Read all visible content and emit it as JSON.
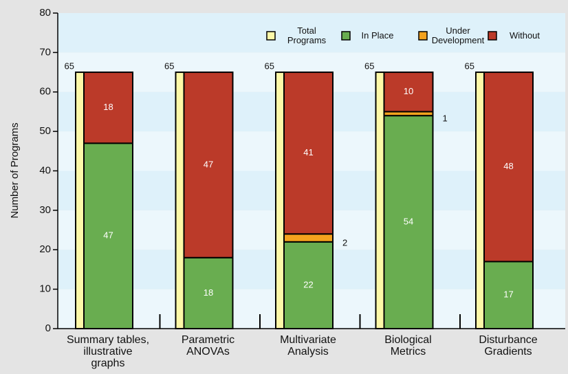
{
  "chart_data": {
    "type": "bar",
    "stacked": true,
    "ylabel": "Number of Programs",
    "categories": [
      "Summary tables,\nillustrative\ngraphs",
      "Parametric\nANOVAs",
      "Multivariate\nAnalysis",
      "Biological\nMetrics",
      "Disturbance\nGradients"
    ],
    "total": {
      "name": "Total\nPrograms",
      "color": "#fdf8a8",
      "values": [
        65,
        65,
        65,
        65,
        65
      ]
    },
    "series": [
      {
        "name": "In Place",
        "color": "#69ad50",
        "values": [
          47,
          18,
          22,
          54,
          17
        ]
      },
      {
        "name": "Under\nDevelopment",
        "color": "#f4a21e",
        "values": [
          0,
          0,
          2,
          1,
          0
        ]
      },
      {
        "name": "Without",
        "color": "#bb3a29",
        "values": [
          18,
          47,
          41,
          10,
          48
        ]
      }
    ],
    "ylim": [
      0,
      80
    ],
    "yticks": [
      0,
      10,
      20,
      30,
      40,
      50,
      60,
      70,
      80
    ],
    "grid": true
  }
}
